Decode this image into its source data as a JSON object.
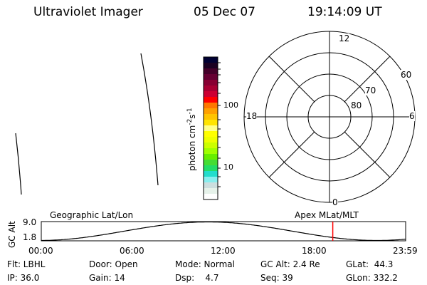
{
  "header": {
    "instrument": "Ultraviolet Imager",
    "date": "05 Dec 07",
    "time": "19:14:09 UT"
  },
  "colorbar": {
    "label": "photon cm^-2 s^-1",
    "label_main": "photon cm",
    "exp1": "-2",
    "s": "s",
    "exp2": "-1",
    "ticks": [
      "100",
      "10"
    ],
    "colors": [
      "#000033",
      "#1a0022",
      "#44002a",
      "#660033",
      "#880033",
      "#a80033",
      "#cc0033",
      "#ff0000",
      "#ff7700",
      "#ffa000",
      "#ffc400",
      "#ffe400",
      "#ffff88",
      "#ffff00",
      "#eeff00",
      "#ccff00",
      "#a0ff00",
      "#66ee00",
      "#44dd33",
      "#22dd66",
      "#22ddcc",
      "#88eeee",
      "#ccdede",
      "#e6f2ea",
      "#ffffff"
    ]
  },
  "polar": {
    "mlt_labels": {
      "top": "12",
      "bottom": "0",
      "left": "18",
      "right": "6"
    },
    "lat_labels": [
      "60",
      "70",
      "80"
    ]
  },
  "timeline": {
    "left_title": "Geographic Lat/Lon",
    "right_title": "Apex MLat/MLT",
    "ylabel": "GC Alt",
    "ymax": "9.0",
    "ymin": "1.8",
    "xticks": [
      "00:00",
      "06:00",
      "12:00",
      "18:00",
      "23:59"
    ],
    "current_time_fraction": 0.8,
    "marker_color": "#ff0000"
  },
  "info": {
    "row1": [
      "Flt: LBHL",
      "Door: Open",
      "Mode: Normal",
      "GC Alt: 2.4 Re",
      "GLat:  44.3"
    ],
    "row2": [
      "IP: 36.0",
      "Gain: 14",
      "Dsp:    4.7",
      "Seq: 39",
      "GLon: 332.2"
    ]
  }
}
